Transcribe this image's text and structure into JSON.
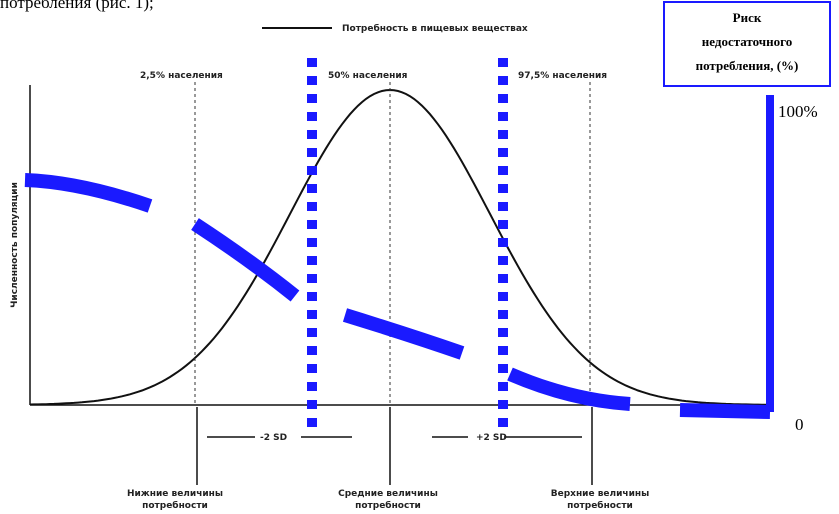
{
  "caption": "потребления (рис. 1);",
  "arrow_title": "Потребность в пищевых веществах",
  "risk_box": [
    "Риск",
    "недостаточного",
    "потребления, (%)"
  ],
  "risk_scale": {
    "top": "100%",
    "bottom": "0"
  },
  "y_axis_title": "Численность популяции",
  "population_labels": [
    "2,5% населения",
    "50% населения",
    "97,5% населения"
  ],
  "sd_labels": [
    "-2 SD",
    "+2 SD"
  ],
  "bottom_labels": [
    [
      "Нижние величины",
      "потребности"
    ],
    [
      "Средние величины",
      "потребности"
    ],
    [
      "Верхние величины",
      "потребности"
    ]
  ]
}
